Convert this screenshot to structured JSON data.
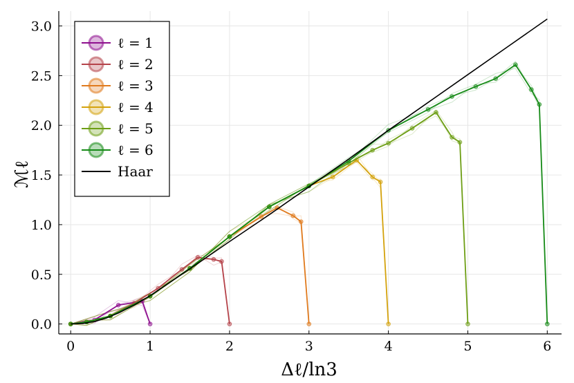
{
  "chart_data": {
    "type": "line",
    "xlabel": "Δℓ/ln3",
    "ylabel": "ℳℓ",
    "xlim": [
      -0.15,
      6.18
    ],
    "ylim": [
      -0.1,
      3.15
    ],
    "xticks": [
      0,
      1,
      2,
      3,
      4,
      5,
      6
    ],
    "xtick_labels": [
      "0",
      "1",
      "2",
      "3",
      "4",
      "5",
      "6"
    ],
    "yticks": [
      0,
      0.5,
      1.0,
      1.5,
      2.0,
      2.5,
      3.0
    ],
    "ytick_labels": [
      "0.0",
      "0.5",
      "1.0",
      "1.5",
      "2.0",
      "2.5",
      "3.0"
    ],
    "grid": true,
    "legend_position": "top-left",
    "series": [
      {
        "name": "ℓ = 1",
        "color": "#8e0f8e",
        "x": [
          0,
          0.3,
          0.6,
          0.9,
          1.0
        ],
        "y": [
          0.0,
          0.04,
          0.19,
          0.23,
          0.0
        ]
      },
      {
        "name": "ℓ = 2",
        "color": "#b5434a",
        "x": [
          0,
          0.2,
          0.5,
          0.8,
          1.1,
          1.4,
          1.6,
          1.8,
          1.9,
          2.0
        ],
        "y": [
          0.0,
          0.02,
          0.08,
          0.21,
          0.36,
          0.55,
          0.67,
          0.65,
          0.63,
          0.0
        ]
      },
      {
        "name": "ℓ = 3",
        "color": "#e07a1d",
        "x": [
          0,
          0.2,
          0.5,
          1.0,
          1.5,
          2.0,
          2.4,
          2.6,
          2.8,
          2.9,
          3.0
        ],
        "y": [
          0.0,
          0.02,
          0.08,
          0.28,
          0.56,
          0.88,
          1.08,
          1.17,
          1.09,
          1.03,
          0.0
        ]
      },
      {
        "name": "ℓ = 4",
        "color": "#d4a20c",
        "x": [
          0,
          0.2,
          0.5,
          1.0,
          1.5,
          2.0,
          2.5,
          3.0,
          3.3,
          3.6,
          3.8,
          3.9,
          4.0
        ],
        "y": [
          0.0,
          0.02,
          0.08,
          0.28,
          0.56,
          0.88,
          1.18,
          1.39,
          1.48,
          1.65,
          1.48,
          1.43,
          0.0
        ]
      },
      {
        "name": "ℓ = 5",
        "color": "#6d9e14",
        "x": [
          0,
          0.2,
          0.5,
          1.0,
          1.5,
          2.0,
          2.5,
          3.0,
          3.5,
          3.8,
          4.0,
          4.3,
          4.6,
          4.8,
          4.9,
          5.0
        ],
        "y": [
          0.0,
          0.02,
          0.08,
          0.28,
          0.56,
          0.88,
          1.18,
          1.39,
          1.62,
          1.75,
          1.82,
          1.97,
          2.13,
          1.88,
          1.83,
          0.0
        ]
      },
      {
        "name": "ℓ = 6",
        "color": "#158a16",
        "x": [
          0,
          0.2,
          0.5,
          1.0,
          1.5,
          2.0,
          2.5,
          3.0,
          3.5,
          4.0,
          4.5,
          4.8,
          5.1,
          5.35,
          5.6,
          5.8,
          5.9,
          6.0
        ],
        "y": [
          0.0,
          0.02,
          0.08,
          0.28,
          0.56,
          0.88,
          1.18,
          1.39,
          1.64,
          1.95,
          2.16,
          2.29,
          2.39,
          2.47,
          2.61,
          2.36,
          2.21,
          0.0
        ]
      },
      {
        "name": "Haar",
        "color": "#000000",
        "x": [
          0,
          0.15,
          0.3,
          0.45,
          0.6,
          0.8,
          1.0,
          1.5,
          2.0,
          2.5,
          3.0,
          3.5,
          4.0,
          4.5,
          5.0,
          5.5,
          6.0
        ],
        "y": [
          0.0,
          0.005,
          0.025,
          0.06,
          0.11,
          0.19,
          0.285,
          0.555,
          0.83,
          1.1,
          1.38,
          1.66,
          1.95,
          2.23,
          2.51,
          2.79,
          3.07
        ]
      }
    ]
  }
}
